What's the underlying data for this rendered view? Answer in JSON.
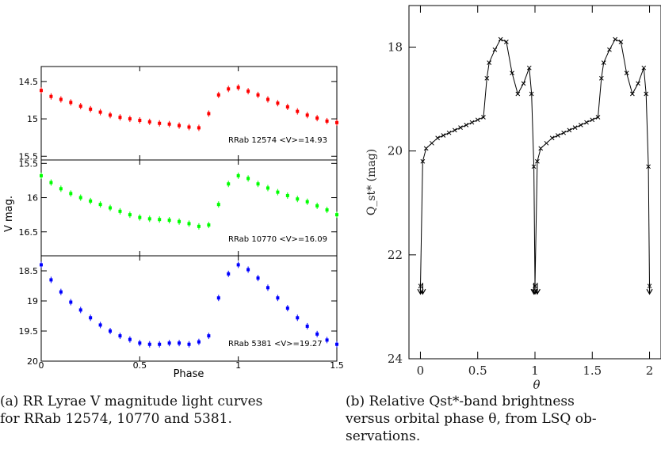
{
  "captions": {
    "a_line1": "(a) RR Lyrae V magnitude light curves",
    "a_line2": "for RRab 12574, 10770 and 5381.",
    "b_line1": "(b) Relative Qst*-band brightness",
    "b_line2": "versus orbital phase θ, from LSQ ob-",
    "b_line3": "servations."
  },
  "chart_data": [
    {
      "type": "scatter",
      "panel": "left",
      "xlabel": "Phase",
      "ylabel": "V mag.",
      "xlim": [
        0,
        1.5
      ],
      "x_ticks": [
        "0",
        "0.5",
        "1",
        "1.5"
      ],
      "y_inverted": true,
      "error_bars": true,
      "subplots": [
        {
          "name": "RRab 12574 <V>=14.93",
          "color": "#ff0000",
          "ylim": [
            15.55,
            14.3
          ],
          "y_ticks": [
            "14.5",
            "15",
            "15.5"
          ],
          "x": [
            0.0,
            0.05,
            0.1,
            0.15,
            0.2,
            0.25,
            0.3,
            0.35,
            0.4,
            0.45,
            0.5,
            0.55,
            0.6,
            0.65,
            0.7,
            0.75,
            0.8,
            0.85,
            0.9,
            0.95,
            1.0,
            1.05,
            1.1,
            1.15,
            1.2,
            1.25,
            1.3,
            1.35,
            1.4,
            1.45,
            1.5
          ],
          "y": [
            14.62,
            14.7,
            14.74,
            14.78,
            14.83,
            14.87,
            14.91,
            14.95,
            14.98,
            15.0,
            15.02,
            15.04,
            15.06,
            15.07,
            15.09,
            15.11,
            15.12,
            14.93,
            14.68,
            14.6,
            14.58,
            14.63,
            14.68,
            14.74,
            14.79,
            14.84,
            14.9,
            14.95,
            14.99,
            15.03,
            15.05
          ]
        },
        {
          "name": "RRab 10770 <V>=16.09",
          "color": "#00ff00",
          "ylim": [
            16.85,
            15.45
          ],
          "y_ticks": [
            "15.5",
            "16",
            "16.5"
          ],
          "x": [
            0.0,
            0.05,
            0.1,
            0.15,
            0.2,
            0.25,
            0.3,
            0.35,
            0.4,
            0.45,
            0.5,
            0.55,
            0.6,
            0.65,
            0.7,
            0.75,
            0.8,
            0.85,
            0.9,
            0.95,
            1.0,
            1.05,
            1.1,
            1.15,
            1.2,
            1.25,
            1.3,
            1.35,
            1.4,
            1.45,
            1.5
          ],
          "y": [
            15.68,
            15.78,
            15.87,
            15.94,
            16.0,
            16.05,
            16.1,
            16.15,
            16.2,
            16.25,
            16.29,
            16.31,
            16.32,
            16.33,
            16.35,
            16.38,
            16.42,
            16.4,
            16.1,
            15.8,
            15.68,
            15.72,
            15.8,
            15.86,
            15.92,
            15.97,
            16.02,
            16.06,
            16.12,
            16.18,
            16.25
          ]
        },
        {
          "name": "RRab 5381 <V>=19.27",
          "color": "#0000ff",
          "ylim": [
            20.0,
            18.25
          ],
          "y_ticks": [
            "18.5",
            "19",
            "19.5",
            "20"
          ],
          "x": [
            0.0,
            0.05,
            0.1,
            0.15,
            0.2,
            0.25,
            0.3,
            0.35,
            0.4,
            0.45,
            0.5,
            0.55,
            0.6,
            0.65,
            0.7,
            0.75,
            0.8,
            0.85,
            0.9,
            0.95,
            1.0,
            1.05,
            1.1,
            1.15,
            1.2,
            1.25,
            1.3,
            1.35,
            1.4,
            1.45,
            1.5
          ],
          "y": [
            18.4,
            18.65,
            18.85,
            19.02,
            19.15,
            19.28,
            19.4,
            19.5,
            19.58,
            19.64,
            19.7,
            19.72,
            19.72,
            19.7,
            19.7,
            19.72,
            19.68,
            19.58,
            18.95,
            18.55,
            18.4,
            18.48,
            18.62,
            18.78,
            18.95,
            19.12,
            19.28,
            19.42,
            19.55,
            19.65,
            19.72
          ]
        }
      ]
    },
    {
      "type": "line",
      "panel": "right",
      "xlabel": "θ",
      "ylabel": "Q_st* (mag)",
      "xlim": [
        -0.1,
        2.1
      ],
      "ylim": [
        24,
        17.2
      ],
      "y_inverted": true,
      "x_ticks": [
        "0",
        "0.5",
        "1",
        "1.5",
        "2"
      ],
      "y_ticks": [
        "18",
        "20",
        "22",
        "24"
      ],
      "marker": "x",
      "color": "#000000",
      "x": [
        0.0,
        0.02,
        0.05,
        0.1,
        0.15,
        0.2,
        0.25,
        0.3,
        0.35,
        0.4,
        0.45,
        0.5,
        0.55,
        0.58,
        0.6,
        0.65,
        0.7,
        0.75,
        0.8,
        0.85,
        0.9,
        0.95,
        0.97,
        0.99,
        1.0,
        1.02,
        1.05,
        1.1,
        1.15,
        1.2,
        1.25,
        1.3,
        1.35,
        1.4,
        1.45,
        1.5,
        1.55,
        1.58,
        1.6,
        1.65,
        1.7,
        1.75,
        1.8,
        1.85,
        1.9,
        1.95,
        1.97,
        1.99,
        2.0
      ],
      "y": [
        22.6,
        20.2,
        19.95,
        19.85,
        19.75,
        19.7,
        19.65,
        19.6,
        19.55,
        19.5,
        19.45,
        19.4,
        19.35,
        18.6,
        18.3,
        18.05,
        17.85,
        17.9,
        18.5,
        18.9,
        18.7,
        18.4,
        18.9,
        20.3,
        22.6,
        20.2,
        19.95,
        19.85,
        19.75,
        19.7,
        19.65,
        19.6,
        19.55,
        19.5,
        19.45,
        19.4,
        19.35,
        18.6,
        18.3,
        18.05,
        17.85,
        17.9,
        18.5,
        18.9,
        18.7,
        18.4,
        18.9,
        20.3,
        22.6
      ],
      "upper_limit_arrows_x": [
        0.0,
        0.02,
        0.99,
        1.0,
        1.02,
        2.0
      ],
      "upper_limit_value": 22.6
    }
  ]
}
